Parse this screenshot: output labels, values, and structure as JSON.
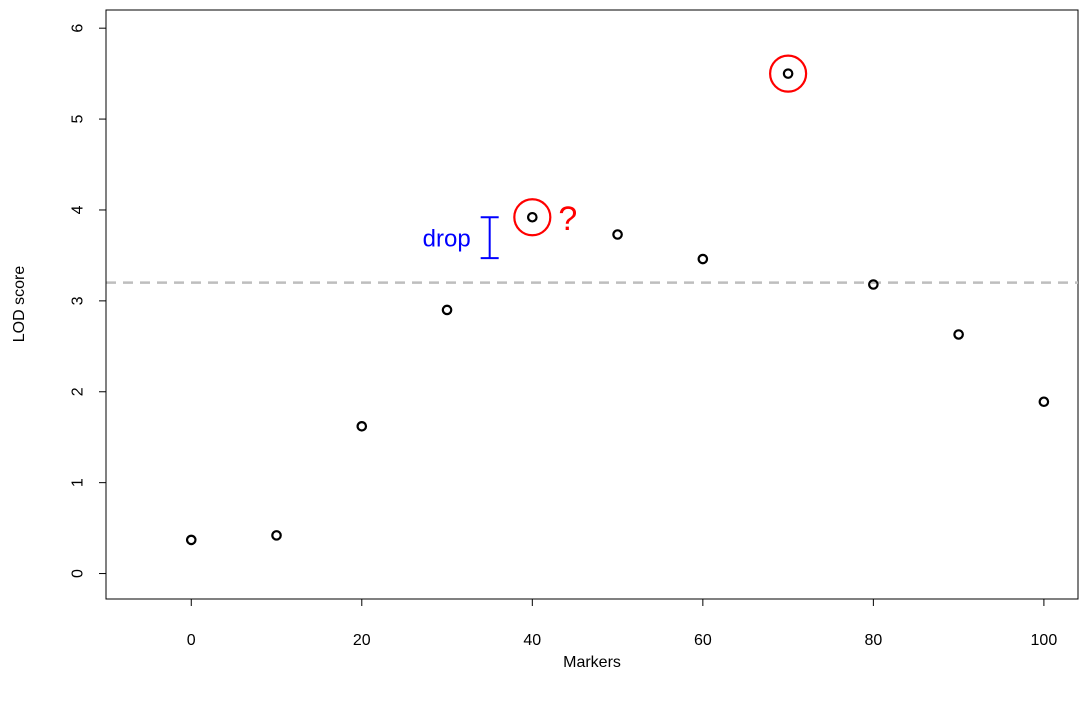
{
  "chart_data": {
    "type": "scatter",
    "title": "",
    "xlabel": "Markers",
    "ylabel": "LOD score",
    "xlim": [
      -10,
      104
    ],
    "ylim": [
      -0.28,
      6.2
    ],
    "x_ticks": [
      0,
      20,
      40,
      60,
      80,
      100
    ],
    "y_ticks": [
      0,
      1,
      2,
      3,
      4,
      5,
      6
    ],
    "grid": false,
    "points": [
      {
        "x": 0,
        "y": 0.37
      },
      {
        "x": 10,
        "y": 0.42
      },
      {
        "x": 20,
        "y": 1.62
      },
      {
        "x": 30,
        "y": 2.9
      },
      {
        "x": 40,
        "y": 3.92
      },
      {
        "x": 50,
        "y": 3.73
      },
      {
        "x": 60,
        "y": 3.46
      },
      {
        "x": 70,
        "y": 5.5
      },
      {
        "x": 80,
        "y": 3.18
      },
      {
        "x": 90,
        "y": 2.63
      },
      {
        "x": 100,
        "y": 1.89
      }
    ],
    "threshold": {
      "y": 3.2,
      "style": "dashed",
      "color": "#bebebe"
    },
    "highlighted_points": [
      {
        "x": 40,
        "y": 3.92,
        "color": "#ff0000"
      },
      {
        "x": 70,
        "y": 5.5,
        "color": "#ff0000"
      }
    ],
    "annotations": {
      "drop": {
        "text": "drop",
        "color": "#0000ff",
        "x": 35,
        "y_from": 3.47,
        "y_to": 3.92
      },
      "question": {
        "text": "?",
        "color": "#ff0000",
        "x": 40,
        "y": 3.92
      }
    }
  }
}
